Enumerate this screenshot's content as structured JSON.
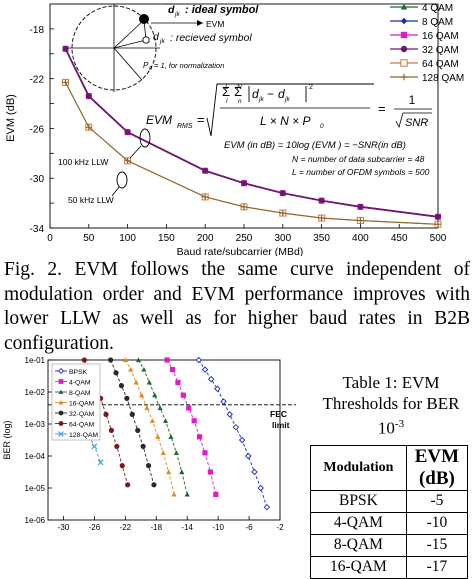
{
  "chart_data": [
    {
      "type": "line",
      "xlabel": "Baud rate/subcarrier (MBd)",
      "ylabel": "EVM (dB)",
      "xlim": [
        0,
        500
      ],
      "ylim": [
        -34,
        -16
      ],
      "x_ticks": [
        "0",
        "50",
        "100",
        "150",
        "200",
        "250",
        "300",
        "350",
        "400",
        "450",
        "500"
      ],
      "y_ticks": [
        "-18",
        "-22",
        "-26",
        "-30",
        "-34"
      ],
      "series": [
        {
          "name": "4 QAM",
          "color": "#1a6b2a",
          "marker": "triangle",
          "x": [
            20,
            50,
            100,
            200,
            250,
            300,
            350,
            400,
            500
          ],
          "y": [
            -19.6,
            -23.4,
            -26.3,
            -29.4,
            -30.4,
            -31.2,
            -31.8,
            -32.3,
            -33.1
          ]
        },
        {
          "name": "8 QAM",
          "color": "#1a2ab5",
          "marker": "diamond",
          "x": [
            20,
            50,
            100,
            200,
            250,
            300,
            350,
            400,
            500
          ],
          "y": [
            -19.6,
            -23.4,
            -26.3,
            -29.4,
            -30.4,
            -31.2,
            -31.8,
            -32.3,
            -33.1
          ]
        },
        {
          "name": "16 QAM",
          "color": "#e01cc8",
          "marker": "square",
          "x": [
            20,
            50,
            100,
            200,
            250,
            300,
            350,
            400,
            500
          ],
          "y": [
            -19.6,
            -23.4,
            -26.3,
            -29.4,
            -30.4,
            -31.2,
            -31.8,
            -32.3,
            -33.1
          ]
        },
        {
          "name": "32 QAM",
          "color": "#6d1a6d",
          "marker": "circle",
          "x": [
            20,
            50,
            100,
            200,
            250,
            300,
            350,
            400,
            500
          ],
          "y": [
            -19.6,
            -23.4,
            -26.3,
            -29.4,
            -30.4,
            -31.2,
            -31.8,
            -32.3,
            -33.1
          ]
        },
        {
          "name": "64 QAM",
          "color": "#d07845",
          "marker": "square-open",
          "x": [
            20,
            50,
            100,
            200,
            250,
            300,
            350,
            400,
            500
          ],
          "y": [
            -22.3,
            -25.9,
            -28.6,
            -31.5,
            -32.3,
            -32.8,
            -33.2,
            -33.4,
            -33.7
          ]
        },
        {
          "name": "128 QAM",
          "color": "#8a6a2a",
          "marker": "plus",
          "x": [
            20,
            50,
            100,
            200,
            250,
            300,
            350,
            400,
            500
          ],
          "y": [
            -22.3,
            -25.9,
            -28.6,
            -31.5,
            -32.3,
            -32.8,
            -33.2,
            -33.4,
            -33.7
          ]
        }
      ],
      "annotations": {
        "ideal_symbol": ": ideal symbol",
        "evm_label": "EVM",
        "received_symbol": ": recieved symbol",
        "normalization": "= 1, for normalization",
        "llw_100": "100 kHz LLW",
        "llw_50": "50 kHz LLW",
        "formula_evm_rms_label": "EVM",
        "formula_rms_sub": "RMS",
        "formula_equals_one_over": "1",
        "formula_sqrt_snr": "SNR",
        "formula_sum_lower_l": "l",
        "formula_sum_lower_n": "n",
        "formula_sum_top_L": "L",
        "formula_sum_top_N": "N",
        "formula_denominator": "L × N × P",
        "formula_db_line": "EVM (in dB) = 10log (EVM   ) = −SNR(in dB)",
        "formula_N_line": "N = number of data subcarrier = 48",
        "formula_L_line": "L = number of OFDM symbols = 500"
      },
      "legend_position": "top-right"
    },
    {
      "type": "line",
      "xlabel": "",
      "ylabel": "BER (log)",
      "y_ticks": [
        "1e-01",
        "1e-02",
        "1e-03",
        "1e-04",
        "1e-05",
        "1e-06"
      ],
      "x_ticks": [
        "-30",
        "-26",
        "-22",
        "-18",
        "-14",
        "-10",
        "-6",
        "-2"
      ],
      "xlim": [
        -32,
        -2
      ],
      "ylim_exponent": [
        -6,
        -1
      ],
      "fec_limit": {
        "label_1": "FEC",
        "label_2": "limit",
        "value_exponent": -2.4
      },
      "series": [
        {
          "name": "BPSK",
          "color": "#1a2ab5",
          "marker": "diamond-open",
          "x": [
            -12.5,
            -11.7,
            -10.9,
            -10.1,
            -9.3,
            -8.5,
            -7.7,
            -6.9,
            -6.1,
            -5.3,
            -4.5,
            -3.7
          ],
          "y_exponent": [
            -1.0,
            -1.3,
            -1.6,
            -1.9,
            -2.3,
            -2.7,
            -3.1,
            -3.5,
            -4.0,
            -4.5,
            -5.0,
            -5.6
          ]
        },
        {
          "name": "4-QAM",
          "color": "#e01cc8",
          "marker": "square",
          "x": [
            -16.6,
            -15.9,
            -15.2,
            -14.5,
            -13.8,
            -13.1,
            -12.4,
            -11.7,
            -11.0,
            -10.3
          ],
          "y_exponent": [
            -1.0,
            -1.3,
            -1.7,
            -2.1,
            -2.5,
            -2.9,
            -3.4,
            -3.9,
            -4.5,
            -5.2
          ]
        },
        {
          "name": "8-QAM",
          "color": "#1a6b2a",
          "marker": "triangle",
          "x": [
            -20.3,
            -19.6,
            -18.9,
            -18.2,
            -17.5,
            -16.8,
            -16.1,
            -15.4,
            -14.7,
            -14.0
          ],
          "y_exponent": [
            -1.0,
            -1.3,
            -1.7,
            -2.1,
            -2.5,
            -2.9,
            -3.4,
            -3.9,
            -4.5,
            -5.2
          ]
        },
        {
          "name": "16-QAM",
          "color": "#e08a1a",
          "marker": "triangle",
          "x": [
            -22.0,
            -21.3,
            -20.6,
            -19.9,
            -19.2,
            -18.5,
            -17.8,
            -17.1,
            -16.4,
            -15.7
          ],
          "y_exponent": [
            -1.0,
            -1.3,
            -1.7,
            -2.1,
            -2.5,
            -2.9,
            -3.4,
            -3.9,
            -4.5,
            -5.2
          ]
        },
        {
          "name": "32-QAM",
          "color": "#2a2a2a",
          "marker": "circle",
          "x": [
            -23.9,
            -23.2,
            -22.5,
            -21.8,
            -21.1,
            -20.4,
            -19.7,
            -19.0,
            -18.3
          ],
          "y_exponent": [
            -1.0,
            -1.4,
            -1.8,
            -2.2,
            -2.7,
            -3.2,
            -3.7,
            -4.3,
            -4.9
          ]
        },
        {
          "name": "64-QAM",
          "color": "#7a1a1a",
          "marker": "circle",
          "x": [
            -27.3,
            -26.6,
            -25.9,
            -25.2,
            -24.5,
            -23.8,
            -23.1,
            -22.4,
            -21.7
          ],
          "y_exponent": [
            -1.0,
            -1.4,
            -1.8,
            -2.2,
            -2.7,
            -3.2,
            -3.7,
            -4.3,
            -4.9
          ]
        },
        {
          "name": "128-QAM",
          "color": "#3aa0d0",
          "marker": "x",
          "x": [
            -30.8,
            -30.0,
            -29.2,
            -28.4,
            -27.6,
            -26.8,
            -26.0,
            -25.2
          ],
          "y_exponent": [
            -1.6,
            -1.9,
            -2.2,
            -2.5,
            -2.9,
            -3.3,
            -3.7,
            -4.2
          ]
        }
      ],
      "legend_position": "top-left"
    }
  ],
  "caption": "Fig. 2. EVM follows the same curve independent of modulation order and EVM performance improves with lower LLW as well as for higher baud rates in B2B configuration.",
  "table": {
    "title_line1": "Table 1: EVM",
    "title_line2": "Thresholds for BER",
    "title_line3": "10",
    "title_exp": "-3",
    "header_modulation": "Modulation",
    "header_evm_1": "EVM",
    "header_evm_2": "(dB)",
    "rows": [
      {
        "modulation": "BPSK",
        "evm": "-5"
      },
      {
        "modulation": "4-QAM",
        "evm": "-10"
      },
      {
        "modulation": "8-QAM",
        "evm": "-15"
      },
      {
        "modulation": "16-QAM",
        "evm": "-17"
      }
    ]
  }
}
